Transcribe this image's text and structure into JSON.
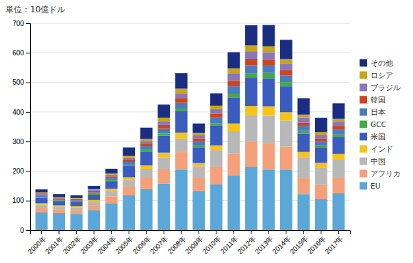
{
  "chart_data": {
    "type": "bar",
    "stacked": true,
    "grid": true,
    "legend": "right",
    "ylabel": "単位：10億ドル",
    "categories": [
      "2000年",
      "2001年",
      "2002年",
      "2003年",
      "2004年",
      "2005年",
      "2006年",
      "2007年",
      "2008年",
      "2009年",
      "2010年",
      "2011年",
      "2012年",
      "2013年",
      "2014年",
      "2015年",
      "2016年",
      "2017年"
    ],
    "series": [
      {
        "name": "EU",
        "color": "#5ba8d8",
        "values": [
          60,
          58,
          55,
          68,
          90,
          118,
          140,
          158,
          205,
          133,
          155,
          185,
          215,
          205,
          205,
          122,
          106,
          125
        ]
      },
      {
        "name": "アフリカ",
        "color": "#f4a07a",
        "values": [
          16,
          13,
          13,
          17,
          25,
          30,
          40,
          50,
          60,
          45,
          60,
          75,
          85,
          90,
          78,
          55,
          48,
          53
        ]
      },
      {
        "name": "中国",
        "color": "#b8b8b8",
        "values": [
          10,
          9,
          9,
          12,
          18,
          22,
          28,
          38,
          45,
          38,
          55,
          75,
          88,
          92,
          88,
          68,
          58,
          62
        ]
      },
      {
        "name": "インド",
        "color": "#f5c418",
        "values": [
          5,
          4,
          4,
          5,
          7,
          9,
          11,
          16,
          20,
          11,
          17,
          26,
          32,
          32,
          28,
          20,
          16,
          18
        ]
      },
      {
        "name": "米国",
        "color": "#3a5cbf",
        "values": [
          18,
          15,
          14,
          18,
          26,
          38,
          48,
          58,
          72,
          53,
          68,
          88,
          95,
          95,
          88,
          62,
          52,
          58
        ]
      },
      {
        "name": "GCC",
        "color": "#44aa44",
        "values": [
          3,
          2,
          2,
          3,
          4,
          5,
          6,
          7,
          9,
          6,
          7,
          13,
          16,
          18,
          14,
          9,
          7,
          8
        ]
      },
      {
        "name": "日本",
        "color": "#4a7bbf",
        "values": [
          5,
          4,
          4,
          5,
          7,
          9,
          11,
          16,
          20,
          14,
          18,
          25,
          27,
          25,
          22,
          16,
          13,
          16
        ]
      },
      {
        "name": "韓国",
        "color": "#cc4422",
        "values": [
          4,
          3,
          3,
          4,
          5,
          7,
          9,
          13,
          16,
          11,
          14,
          20,
          22,
          20,
          18,
          12,
          11,
          13
        ]
      },
      {
        "name": "ブラジル",
        "color": "#8877bb",
        "values": [
          4,
          3,
          3,
          4,
          6,
          8,
          9,
          13,
          16,
          11,
          16,
          22,
          25,
          25,
          22,
          16,
          12,
          14
        ]
      },
      {
        "name": "ロシア",
        "color": "#c8a418",
        "values": [
          3,
          2,
          2,
          3,
          4,
          6,
          7,
          11,
          16,
          7,
          11,
          18,
          20,
          20,
          16,
          11,
          9,
          10
        ]
      },
      {
        "name": "その他",
        "color": "#1a2d80",
        "values": [
          10,
          9,
          9,
          11,
          16,
          28,
          38,
          45,
          52,
          32,
          42,
          55,
          68,
          72,
          65,
          55,
          48,
          52
        ]
      }
    ],
    "ylim": [
      0,
      700
    ],
    "yticks": [
      0,
      100,
      200,
      300,
      400,
      500,
      600,
      700
    ]
  }
}
